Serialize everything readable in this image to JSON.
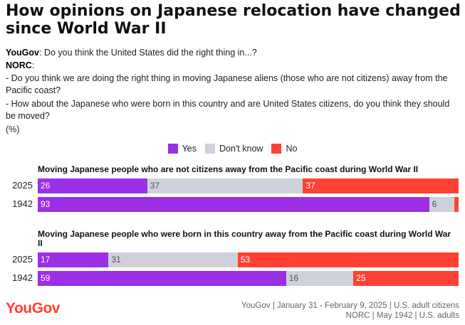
{
  "title": "How opinions on Japanese relocation have changed since World War II",
  "questions": {
    "yougov_label": "YouGov",
    "yougov_text": ": Do you think the United States did the right thing in...?",
    "norc_label": "NORC",
    "norc_colon": ":",
    "norc_q1": "- Do you think we are doing the right thing in moving Japanese aliens (those who are not citizens) away from the Pacific coast?",
    "norc_q2": "- How about the Japanese who were born in this country and are United States citizens, do you think they should be moved?",
    "unit": "(%)"
  },
  "colors": {
    "yes": "#9b30e6",
    "dont_know": "#ced1db",
    "no": "#ff4133"
  },
  "legend": [
    {
      "label": "Yes",
      "color": "#9b30e6"
    },
    {
      "label": "Don't know",
      "color": "#ced1db"
    },
    {
      "label": "No",
      "color": "#ff4133"
    }
  ],
  "chart_data": [
    {
      "type": "bar",
      "stacked": true,
      "orientation": "horizontal",
      "title": "Moving Japanese people who are not citizens away from the Pacific coast during World War II",
      "categories": [
        "2025",
        "1942"
      ],
      "series": [
        {
          "name": "Yes",
          "values": [
            26,
            93
          ]
        },
        {
          "name": "Don't know",
          "values": [
            37,
            6
          ]
        },
        {
          "name": "No",
          "values": [
            37,
            1
          ]
        }
      ],
      "data_labels": [
        [
          "26",
          "37",
          "37"
        ],
        [
          "93",
          "6",
          ""
        ]
      ]
    },
    {
      "type": "bar",
      "stacked": true,
      "orientation": "horizontal",
      "title": "Moving Japanese people who were born in this country away from the Pacific coast during World War II",
      "categories": [
        "2025",
        "1942"
      ],
      "series": [
        {
          "name": "Yes",
          "values": [
            17,
            59
          ]
        },
        {
          "name": "Don't know",
          "values": [
            31,
            16
          ]
        },
        {
          "name": "No",
          "values": [
            53,
            25
          ]
        }
      ],
      "data_labels": [
        [
          "17",
          "31",
          "53"
        ],
        [
          "59",
          "16",
          "25"
        ]
      ]
    }
  ],
  "source": {
    "line1": "YouGov | January 31 - February 9, 2025 | U.S. adult citizens",
    "line2": "NORC | May 1942 | U.S. adults"
  },
  "logo": "YouGov"
}
